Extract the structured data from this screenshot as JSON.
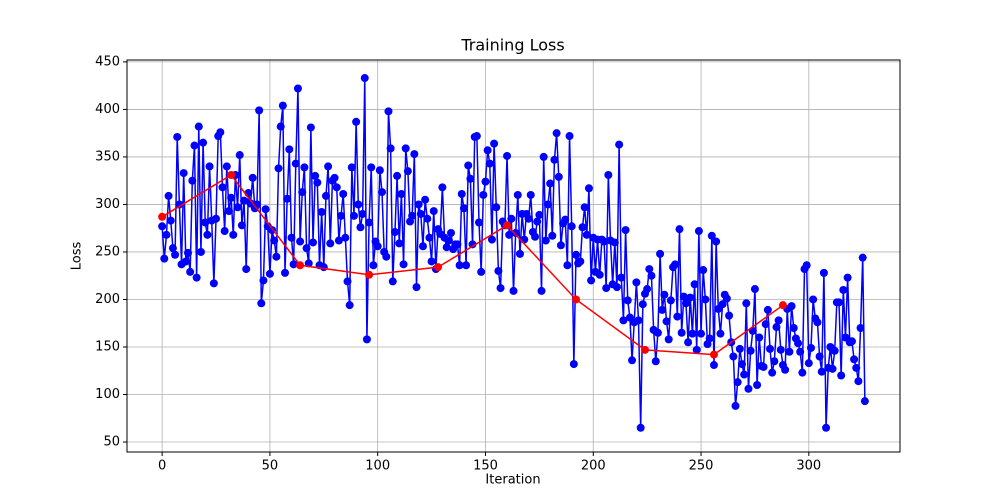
{
  "chart_data": {
    "type": "line",
    "title": "Training Loss",
    "x_label": "Iteration",
    "y_label": "Loss",
    "xlim": [
      -16.3,
      342.3
    ],
    "ylim": [
      39.5,
      452
    ],
    "xticks": [
      0,
      50,
      100,
      150,
      200,
      250,
      300
    ],
    "yticks": [
      50,
      100,
      150,
      200,
      250,
      300,
      350,
      400,
      450
    ],
    "grid": true,
    "series": [
      {
        "color": "#0000ff",
        "x": [
          0,
          1,
          2,
          3,
          4,
          5,
          6,
          7,
          8,
          9,
          10,
          11,
          12,
          13,
          14,
          15,
          16,
          17,
          18,
          19,
          20,
          21,
          22,
          23,
          24,
          25,
          26,
          27,
          28,
          29,
          30,
          31,
          32,
          33,
          34,
          35,
          36,
          37,
          38,
          39,
          40,
          41,
          42,
          43,
          44,
          45,
          46,
          47,
          48,
          49,
          50,
          51,
          52,
          53,
          54,
          55,
          56,
          57,
          58,
          59,
          60,
          61,
          62,
          63,
          64,
          65,
          66,
          67,
          68,
          69,
          70,
          71,
          72,
          73,
          74,
          75,
          76,
          77,
          78,
          79,
          80,
          81,
          82,
          83,
          84,
          85,
          86,
          87,
          88,
          89,
          90,
          91,
          92,
          93,
          94,
          95,
          96,
          97,
          98,
          99,
          100,
          101,
          102,
          103,
          104,
          105,
          106,
          107,
          108,
          109,
          110,
          111,
          112,
          113,
          114,
          115,
          116,
          117,
          118,
          119,
          120,
          121,
          122,
          123,
          124,
          125,
          126,
          127,
          128,
          129,
          130,
          131,
          132,
          133,
          134,
          135,
          136,
          137,
          138,
          139,
          140,
          141,
          142,
          143,
          144,
          145,
          146,
          147,
          148,
          149,
          150,
          151,
          152,
          153,
          154,
          155,
          156,
          157,
          158,
          159,
          160,
          161,
          162,
          163,
          164,
          165,
          166,
          167,
          168,
          169,
          170,
          171,
          172,
          173,
          174,
          175,
          176,
          177,
          178,
          179,
          180,
          181,
          182,
          183,
          184,
          185,
          186,
          187,
          188,
          189,
          190,
          191,
          192,
          193,
          194,
          195,
          196,
          197,
          198,
          199,
          200,
          201,
          202,
          203,
          204,
          205,
          206,
          207,
          208,
          209,
          210,
          211,
          212,
          213,
          214,
          215,
          216,
          217,
          218,
          219,
          220,
          221,
          222,
          223,
          224,
          225,
          226,
          227,
          228,
          229,
          230,
          231,
          232,
          233,
          234,
          235,
          236,
          237,
          238,
          239,
          240,
          241,
          242,
          243,
          244,
          245,
          246,
          247,
          248,
          249,
          250,
          251,
          252,
          253,
          254,
          255,
          256,
          257,
          258,
          259,
          260,
          261,
          262,
          263,
          264,
          265,
          266,
          267,
          268,
          269,
          270,
          271,
          272,
          273,
          274,
          275,
          276,
          277,
          278,
          279,
          280,
          281,
          282,
          283,
          284,
          285,
          286,
          287,
          288,
          289,
          290,
          291,
          292,
          293,
          294,
          295,
          296,
          297,
          298,
          299,
          300,
          301,
          302,
          303,
          304,
          305,
          306,
          307,
          308,
          309,
          310,
          311,
          312,
          313,
          314,
          315,
          316,
          317,
          318,
          319,
          320,
          321,
          322,
          323,
          324,
          325,
          326
        ],
        "values": [
          277,
          243,
          268,
          309,
          283,
          254,
          247,
          371,
          300,
          237,
          333,
          240,
          249,
          229,
          325,
          362,
          223,
          382,
          250,
          365,
          281,
          268,
          340,
          283,
          217,
          285,
          372,
          376,
          318,
          272,
          340,
          293,
          307,
          268,
          331,
          297,
          352,
          278,
          304,
          232,
          312,
          301,
          328,
          296,
          300,
          399,
          196,
          220,
          295,
          277,
          227,
          273,
          262,
          245,
          338,
          382,
          404,
          228,
          306,
          358,
          265,
          237,
          343,
          422,
          261,
          313,
          339,
          254,
          238,
          381,
          260,
          330,
          323,
          236,
          292,
          234,
          309,
          340,
          259,
          325,
          328,
          318,
          262,
          288,
          311,
          265,
          219,
          194,
          339,
          288,
          387,
          300,
          276,
          290,
          433,
          158,
          281,
          339,
          236,
          261,
          256,
          336,
          313,
          250,
          245,
          398,
          359,
          219,
          271,
          330,
          259,
          311,
          237,
          359,
          335,
          282,
          288,
          353,
          213,
          300,
          290,
          256,
          305,
          285,
          265,
          240,
          293,
          232,
          274,
          269,
          318,
          265,
          255,
          262,
          270,
          253,
          258,
          258,
          236,
          311,
          296,
          236,
          341,
          327,
          258,
          371,
          372,
          281,
          229,
          310,
          324,
          357,
          343,
          263,
          364,
          297,
          230,
          212,
          282,
          278,
          351,
          268,
          285,
          209,
          270,
          310,
          248,
          290,
          263,
          290,
          285,
          310,
          271,
          266,
          282,
          289,
          209,
          350,
          262,
          300,
          322,
          267,
          347,
          375,
          329,
          257,
          280,
          284,
          236,
          372,
          277,
          132,
          247,
          238,
          240,
          276,
          297,
          268,
          317,
          220,
          265,
          229,
          263,
          226,
          263,
          261,
          212,
          331,
          262,
          216,
          260,
          213,
          363,
          223,
          178,
          273,
          199,
          181,
          136,
          176,
          218,
          178,
          65,
          195,
          206,
          211,
          232,
          225,
          168,
          135,
          165,
          248,
          189,
          205,
          177,
          158,
          199,
          234,
          237,
          182,
          274,
          165,
          203,
          196,
          155,
          202,
          164,
          216,
          147,
          272,
          164,
          231,
          200,
          153,
          159,
          267,
          131,
          261,
          190,
          164,
          195,
          205,
          201,
          183,
          155,
          140,
          88,
          113,
          148,
          132,
          121,
          196,
          106,
          146,
          167,
          211,
          110,
          160,
          130,
          129,
          174,
          189,
          148,
          123,
          135,
          171,
          178,
          147,
          131,
          126,
          190,
          145,
          193,
          170,
          159,
          154,
          145,
          123,
          232,
          236,
          133,
          149,
          200,
          180,
          176,
          140,
          124,
          228,
          65,
          128,
          150,
          127,
          146,
          197,
          197,
          120,
          210,
          160,
          223,
          155,
          156,
          137,
          128,
          114,
          170,
          244,
          93
        ]
      },
      {
        "color": "#ff0000",
        "x": [
          0,
          32,
          64,
          96,
          128,
          160,
          192,
          224,
          256,
          288
        ],
        "values": [
          287,
          331,
          236,
          226,
          234,
          278,
          200,
          147,
          142,
          194
        ]
      }
    ]
  }
}
